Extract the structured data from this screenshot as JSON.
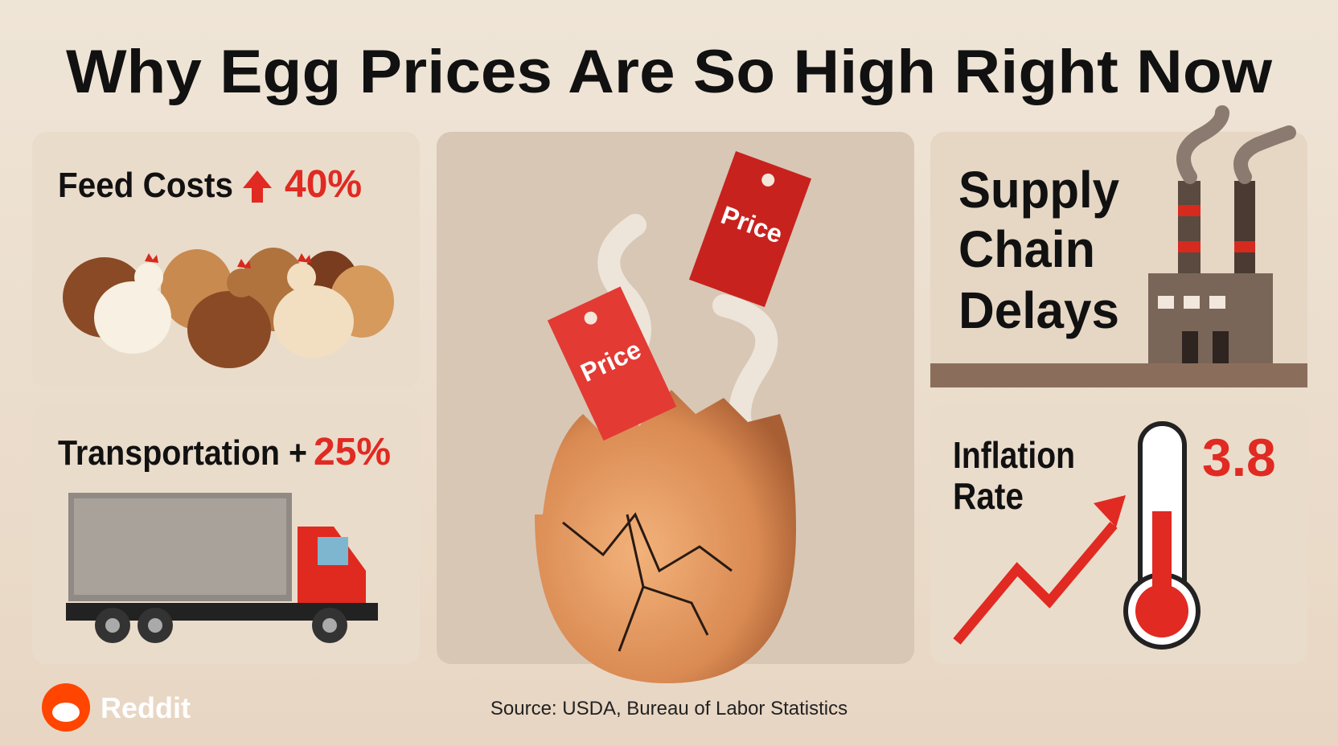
{
  "header": {
    "title": "Why Egg Prices Are So High Right Now"
  },
  "panels": {
    "feed": {
      "label": "Feed Costs",
      "value": "40%"
    },
    "transport": {
      "label": "Transportation +",
      "value": "25%"
    },
    "supply": {
      "lines": [
        "Supply",
        "Chain",
        "Delays"
      ]
    },
    "inflation": {
      "lines": [
        "Inflation",
        "Rate"
      ],
      "value": "3.8"
    }
  },
  "price_tags": [
    "Price",
    "Price"
  ],
  "footer": {
    "source": "Source: USDA, Bureau of Labor Statistics",
    "brand": "Reddit"
  }
}
